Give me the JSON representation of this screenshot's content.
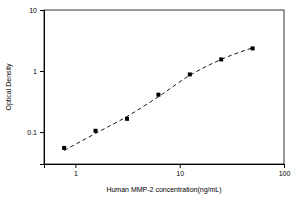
{
  "chart_data": {
    "type": "scatter",
    "x_label": "Human MMP-2 concentration(ng/mL)",
    "y_label": "Optical Density",
    "x": [
      0.78,
      1.56,
      3.125,
      6.25,
      12.5,
      25,
      50
    ],
    "series": [
      {
        "type": "scatter",
        "marker": "square",
        "color": "#000000",
        "values": [
          0.055,
          0.105,
          0.165,
          0.41,
          0.88,
          1.55,
          2.35
        ]
      },
      {
        "type": "line",
        "line_style": "dashed",
        "color": "#000000",
        "values": [
          0.05,
          0.095,
          0.18,
          0.38,
          0.85,
          1.55,
          2.4
        ]
      }
    ],
    "log": true,
    "xlim": [
      0.5,
      100
    ],
    "xticks": [
      1,
      10,
      100
    ],
    "ylim": [
      0.03,
      10
    ],
    "yticks": [
      0.1,
      1,
      10
    ]
  }
}
